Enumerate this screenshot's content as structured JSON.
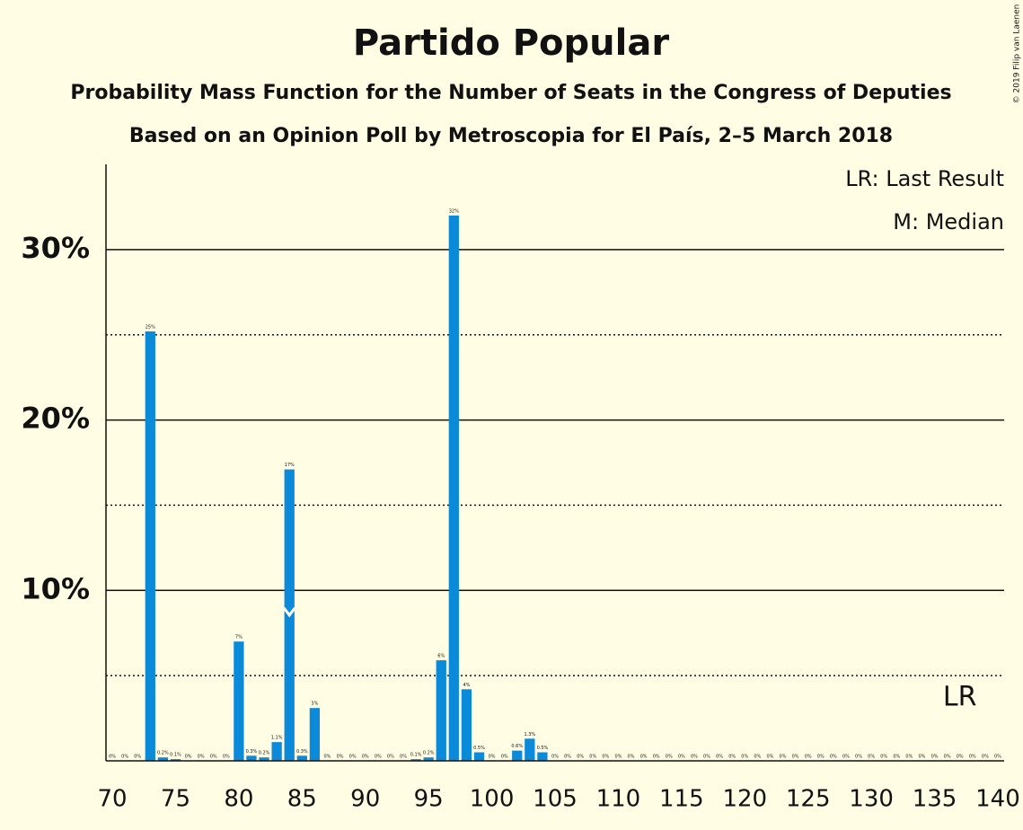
{
  "chart_data": {
    "type": "bar",
    "title": "Partido Popular",
    "subtitle": [
      "Probability Mass Function for the Number of Seats in the Congress of Deputies",
      "Based on an Opinion Poll by Metroscopia for El País, 2–5 March 2018"
    ],
    "legend": [
      "LR: Last Result",
      "M: Median"
    ],
    "copyright": "© 2019 Filip van Laenen",
    "x": [
      70,
      71,
      72,
      73,
      74,
      75,
      76,
      77,
      78,
      79,
      80,
      81,
      82,
      83,
      84,
      85,
      86,
      87,
      88,
      89,
      90,
      91,
      92,
      93,
      94,
      95,
      96,
      97,
      98,
      99,
      100,
      101,
      102,
      103,
      104,
      105,
      106,
      107,
      108,
      109,
      110,
      111,
      112,
      113,
      114,
      115,
      116,
      117,
      118,
      119,
      120,
      121,
      122,
      123,
      124,
      125,
      126,
      127,
      128,
      129,
      130,
      131,
      132,
      133,
      134,
      135,
      136,
      137,
      138,
      139,
      140
    ],
    "values": [
      0,
      0,
      0,
      25.2,
      0.2,
      0.1,
      0,
      0,
      0,
      0,
      7.0,
      0.3,
      0.2,
      1.1,
      17.1,
      0.3,
      3.1,
      0,
      0,
      0,
      0,
      0,
      0,
      0,
      0.1,
      0.2,
      5.9,
      32.0,
      4.2,
      0.5,
      0,
      0,
      0.6,
      1.3,
      0.5,
      0,
      0,
      0,
      0,
      0,
      0,
      0,
      0,
      0,
      0,
      0,
      0,
      0,
      0,
      0,
      0,
      0,
      0,
      0,
      0,
      0,
      0,
      0,
      0,
      0,
      0,
      0,
      0,
      0,
      0,
      0,
      0,
      0,
      0,
      0,
      0
    ],
    "value_labels": [
      "0%",
      "0%",
      "0%",
      "25%",
      "0.2%",
      "0.1%",
      "0%",
      "0%",
      "0%",
      "0%",
      "7%",
      "0.3%",
      "0.2%",
      "1.1%",
      "17%",
      "0.3%",
      "3%",
      "0%",
      "0%",
      "0%",
      "0%",
      "0%",
      "0%",
      "0%",
      "0.1%",
      "0.2%",
      "6%",
      "32%",
      "4%",
      "0.5%",
      "0%",
      "0%",
      "0.6%",
      "1.3%",
      "0.5%",
      "0%",
      "0%",
      "0%",
      "0%",
      "0%",
      "0%",
      "0%",
      "0%",
      "0%",
      "0%",
      "0%",
      "0%",
      "0%",
      "0%",
      "0%",
      "0%",
      "0%",
      "0%",
      "0%",
      "0%",
      "0%",
      "0%",
      "0%",
      "0%",
      "0%",
      "0%",
      "0%",
      "0%",
      "0%",
      "0%",
      "0%",
      "0%",
      "0%",
      "0%",
      "0%",
      "0%"
    ],
    "color": "#0a8ad8",
    "xlim": [
      69.5,
      140.5
    ],
    "xticks": [
      70,
      75,
      80,
      85,
      90,
      95,
      100,
      105,
      110,
      115,
      120,
      125,
      130,
      135,
      140
    ],
    "ylim": [
      0,
      35
    ],
    "yticks": [
      {
        "value": 10,
        "label": "10%"
      },
      {
        "value": 20,
        "label": "20%"
      },
      {
        "value": 30,
        "label": "30%"
      }
    ],
    "minor_yticks": [
      5,
      15,
      25
    ],
    "last_result": 137,
    "last_result_label": "LR",
    "median": 84
  }
}
